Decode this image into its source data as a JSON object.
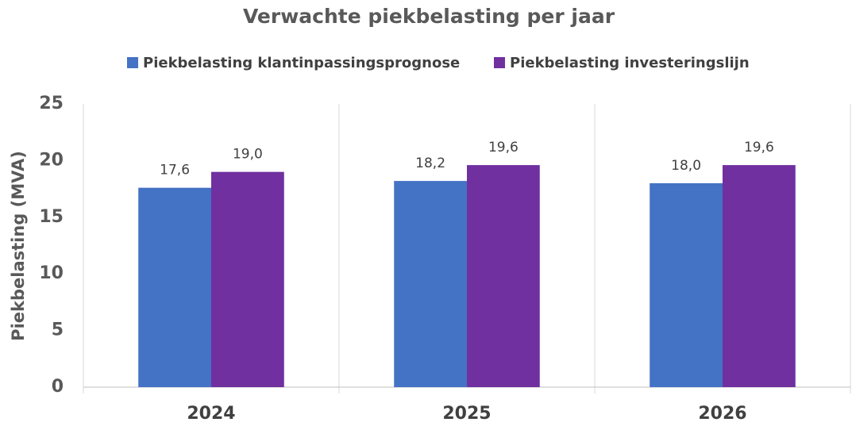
{
  "chart_data": {
    "type": "bar",
    "title": "Verwachte piekbelasting per jaar",
    "y_label": "Piekbelasting (MVA)",
    "categories": [
      "2024",
      "2025",
      "2026"
    ],
    "series": [
      {
        "name": "Piekbelasting klantinpassingsprognose",
        "color": "#4472c4",
        "values": [
          17.6,
          18.2,
          18.0
        ],
        "value_labels": [
          "17,6",
          "18,2",
          "18,0"
        ]
      },
      {
        "name": "Piekbelasting investeringslijn",
        "color": "#7030a0",
        "values": [
          19.0,
          19.6,
          19.6
        ],
        "value_labels": [
          "19,0",
          "19,6",
          "19,6"
        ]
      }
    ],
    "ylim": [
      0,
      25
    ],
    "yticks": [
      0,
      5,
      10,
      15,
      20,
      25
    ],
    "grid": false,
    "legend": "top"
  }
}
